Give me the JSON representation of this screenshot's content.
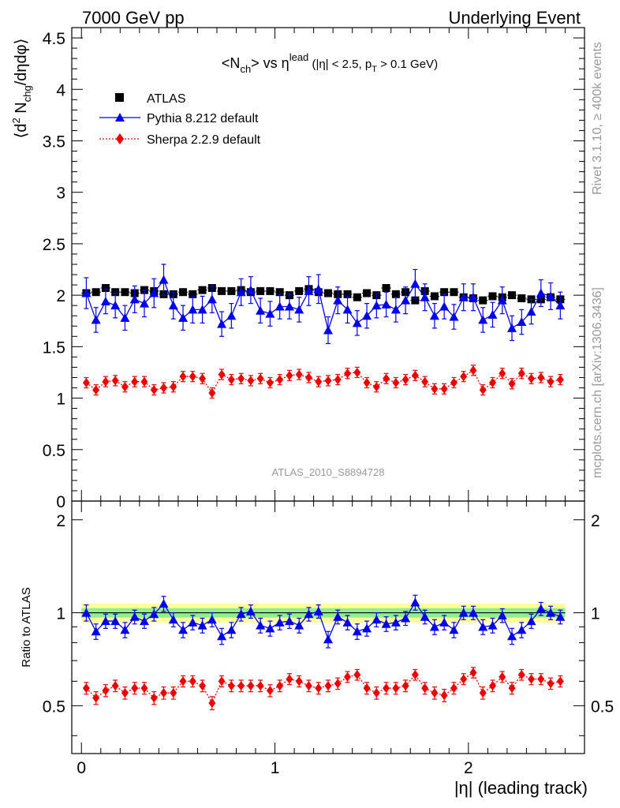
{
  "header": {
    "left": "7000 GeV pp",
    "right": "Underlying Event"
  },
  "side_labels": {
    "rivet": "Rivet 3.1.10, ≥ 400k events",
    "mcplots": "mcplots.cern.ch [arXiv:1306.3436]"
  },
  "analysis_id": "ATLAS_2010_S8894728",
  "chart_data": [
    {
      "panel": "main",
      "type": "scatter",
      "title": "<N_ch> vs η^lead (|η| < 2.5, p_T > 0.1 GeV)",
      "title_parts": {
        "main": "<N",
        "sub1": "ch",
        "mid": "> vs η",
        "sup": "lead",
        "cond": " (|η| < 2.5, p",
        "sub2": "T",
        "end": " > 0.1 GeV)"
      },
      "ylabel": "⟨d² N_chg/dηdφ⟩",
      "ylabel_parts": {
        "pre": "⟨d",
        "sup": "2",
        "mid": " N",
        "sub": "chg",
        "post": "/dηdφ⟩"
      },
      "xlabel": "|η| (leading track)",
      "xlim": [
        -0.05,
        2.6
      ],
      "ylim": [
        0,
        4.6
      ],
      "yticks": [
        0,
        0.5,
        1,
        1.5,
        2,
        2.5,
        3,
        3.5,
        4,
        4.5
      ],
      "ytick_labels": [
        "0",
        "0.5",
        "1",
        "1.5",
        "2",
        "2.5",
        "3",
        "3.5",
        "4",
        "4.5"
      ],
      "legend_placement": "top-left",
      "legend": [
        "ATLAS",
        "Pythia 8.212 default",
        "Sherpa 2.2.9 default"
      ],
      "x": [
        0.025,
        0.075,
        0.125,
        0.175,
        0.225,
        0.275,
        0.325,
        0.375,
        0.425,
        0.475,
        0.525,
        0.575,
        0.625,
        0.675,
        0.725,
        0.775,
        0.825,
        0.875,
        0.925,
        0.975,
        1.025,
        1.075,
        1.125,
        1.175,
        1.225,
        1.275,
        1.325,
        1.375,
        1.425,
        1.475,
        1.525,
        1.575,
        1.625,
        1.675,
        1.725,
        1.775,
        1.825,
        1.875,
        1.925,
        1.975,
        2.025,
        2.075,
        2.125,
        2.175,
        2.225,
        2.275,
        2.325,
        2.375,
        2.425,
        2.475
      ],
      "series": [
        {
          "name": "ATLAS",
          "marker": "square",
          "color": "#000000",
          "values": [
            2.02,
            2.03,
            2.07,
            2.03,
            2.03,
            2.02,
            2.05,
            2.04,
            2.01,
            2.01,
            2.03,
            2.01,
            2.05,
            2.07,
            2.04,
            2.04,
            2.05,
            2.03,
            2.04,
            2.04,
            2.03,
            2.0,
            2.04,
            2.06,
            2.03,
            2.02,
            2.01,
            2.01,
            1.98,
            2.02,
            2.0,
            2.07,
            2.01,
            2.03,
            1.95,
            2.04,
            1.99,
            2.03,
            2.03,
            1.98,
            1.97,
            1.95,
            1.99,
            1.98,
            2.0,
            1.97,
            1.96,
            1.96,
            1.98,
            1.96
          ],
          "errors": [
            0.02,
            0.02,
            0.02,
            0.02,
            0.02,
            0.02,
            0.02,
            0.02,
            0.02,
            0.02,
            0.02,
            0.02,
            0.02,
            0.02,
            0.02,
            0.02,
            0.02,
            0.02,
            0.02,
            0.02,
            0.02,
            0.02,
            0.02,
            0.02,
            0.02,
            0.02,
            0.02,
            0.02,
            0.02,
            0.02,
            0.02,
            0.02,
            0.02,
            0.02,
            0.02,
            0.02,
            0.02,
            0.02,
            0.02,
            0.02,
            0.02,
            0.02,
            0.02,
            0.02,
            0.02,
            0.02,
            0.02,
            0.02,
            0.02,
            0.02
          ]
        },
        {
          "name": "Pythia 8.212 default",
          "marker": "triangle",
          "line": "solid",
          "color": "#0000ee",
          "values": [
            2.02,
            1.76,
            1.94,
            1.9,
            1.78,
            1.96,
            1.92,
            2.02,
            2.15,
            1.9,
            1.78,
            1.86,
            1.86,
            1.96,
            1.72,
            1.8,
            2.03,
            2.05,
            1.85,
            1.82,
            1.89,
            1.89,
            1.86,
            2.04,
            2.06,
            1.66,
            1.95,
            1.86,
            1.73,
            1.8,
            1.9,
            1.91,
            1.86,
            1.95,
            2.11,
            1.98,
            1.8,
            1.89,
            1.79,
            1.98,
            1.98,
            1.76,
            1.81,
            1.95,
            1.68,
            1.74,
            1.84,
            2.02,
            1.99,
            1.9
          ],
          "errors": [
            0.15,
            0.12,
            0.12,
            0.12,
            0.12,
            0.13,
            0.13,
            0.14,
            0.15,
            0.13,
            0.12,
            0.13,
            0.13,
            0.13,
            0.12,
            0.12,
            0.13,
            0.13,
            0.12,
            0.12,
            0.12,
            0.12,
            0.12,
            0.14,
            0.14,
            0.13,
            0.13,
            0.13,
            0.12,
            0.12,
            0.12,
            0.12,
            0.12,
            0.13,
            0.14,
            0.13,
            0.12,
            0.12,
            0.12,
            0.13,
            0.13,
            0.12,
            0.12,
            0.13,
            0.12,
            0.12,
            0.12,
            0.13,
            0.13,
            0.13
          ]
        },
        {
          "name": "Sherpa 2.2.9 default",
          "marker": "diamond",
          "line": "dotted",
          "color": "#ee0000",
          "values": [
            1.15,
            1.08,
            1.16,
            1.17,
            1.11,
            1.16,
            1.16,
            1.08,
            1.1,
            1.11,
            1.21,
            1.21,
            1.19,
            1.05,
            1.23,
            1.18,
            1.19,
            1.17,
            1.19,
            1.15,
            1.18,
            1.22,
            1.23,
            1.2,
            1.16,
            1.17,
            1.18,
            1.24,
            1.25,
            1.15,
            1.11,
            1.19,
            1.15,
            1.18,
            1.22,
            1.16,
            1.09,
            1.09,
            1.15,
            1.21,
            1.27,
            1.08,
            1.15,
            1.24,
            1.14,
            1.24,
            1.19,
            1.2,
            1.16,
            1.18
          ],
          "errors": [
            0.05,
            0.05,
            0.05,
            0.05,
            0.05,
            0.05,
            0.05,
            0.05,
            0.05,
            0.05,
            0.05,
            0.05,
            0.05,
            0.05,
            0.05,
            0.05,
            0.05,
            0.05,
            0.05,
            0.05,
            0.05,
            0.05,
            0.05,
            0.05,
            0.05,
            0.05,
            0.05,
            0.05,
            0.05,
            0.05,
            0.05,
            0.05,
            0.05,
            0.05,
            0.05,
            0.05,
            0.05,
            0.05,
            0.05,
            0.05,
            0.05,
            0.05,
            0.05,
            0.05,
            0.05,
            0.05,
            0.05,
            0.05,
            0.05,
            0.05
          ]
        }
      ]
    },
    {
      "panel": "ratio",
      "type": "scatter",
      "ylabel": "Ratio to ATLAS",
      "xlabel": "|η| (leading track)",
      "xlim": [
        -0.05,
        2.6
      ],
      "ylim": [
        0.35,
        2.3
      ],
      "yticks": [
        0.5,
        1,
        2
      ],
      "ytick_labels": [
        "0.5",
        "1",
        "2"
      ],
      "xticks": [
        0,
        1,
        2
      ],
      "xtick_labels": [
        "0",
        "1",
        "2"
      ],
      "bands": {
        "inner_color": "#90ee90",
        "outer_color": "#ffff99",
        "inner_halfwidth": 0.035,
        "outer_halfwidth": 0.07
      },
      "reference_line": 1,
      "series": [
        {
          "name": "Pythia 8.212 default",
          "color": "#0000ee",
          "values": [
            1.0,
            0.87,
            0.94,
            0.94,
            0.88,
            0.97,
            0.94,
            0.99,
            1.07,
            0.95,
            0.88,
            0.93,
            0.91,
            0.95,
            0.84,
            0.88,
            0.99,
            1.01,
            0.91,
            0.89,
            0.93,
            0.94,
            0.91,
            0.99,
            1.01,
            0.82,
            0.97,
            0.93,
            0.87,
            0.89,
            0.95,
            0.92,
            0.93,
            0.96,
            1.08,
            0.97,
            0.9,
            0.93,
            0.88,
            1.0,
            1.0,
            0.9,
            0.91,
            0.98,
            0.84,
            0.88,
            0.94,
            1.03,
            1.0,
            0.97
          ],
          "errors": [
            0.06,
            0.05,
            0.05,
            0.05,
            0.05,
            0.05,
            0.05,
            0.05,
            0.06,
            0.05,
            0.05,
            0.05,
            0.05,
            0.05,
            0.05,
            0.05,
            0.05,
            0.05,
            0.05,
            0.05,
            0.05,
            0.05,
            0.05,
            0.05,
            0.05,
            0.05,
            0.05,
            0.05,
            0.05,
            0.05,
            0.05,
            0.05,
            0.05,
            0.05,
            0.06,
            0.05,
            0.05,
            0.05,
            0.05,
            0.05,
            0.05,
            0.05,
            0.05,
            0.05,
            0.05,
            0.05,
            0.05,
            0.05,
            0.05,
            0.05
          ]
        },
        {
          "name": "Sherpa 2.2.9 default",
          "color": "#ee0000",
          "values": [
            0.57,
            0.53,
            0.56,
            0.58,
            0.55,
            0.57,
            0.57,
            0.53,
            0.55,
            0.55,
            0.6,
            0.6,
            0.58,
            0.51,
            0.6,
            0.58,
            0.58,
            0.58,
            0.58,
            0.56,
            0.58,
            0.61,
            0.6,
            0.58,
            0.57,
            0.58,
            0.59,
            0.62,
            0.63,
            0.57,
            0.55,
            0.57,
            0.57,
            0.58,
            0.63,
            0.57,
            0.55,
            0.54,
            0.57,
            0.61,
            0.64,
            0.55,
            0.58,
            0.62,
            0.57,
            0.63,
            0.61,
            0.61,
            0.59,
            0.6
          ],
          "errors": [
            0.025,
            0.025,
            0.025,
            0.025,
            0.025,
            0.025,
            0.025,
            0.025,
            0.025,
            0.025,
            0.025,
            0.025,
            0.025,
            0.025,
            0.025,
            0.025,
            0.025,
            0.025,
            0.025,
            0.025,
            0.025,
            0.025,
            0.025,
            0.025,
            0.025,
            0.025,
            0.025,
            0.025,
            0.025,
            0.025,
            0.025,
            0.025,
            0.025,
            0.025,
            0.025,
            0.025,
            0.025,
            0.025,
            0.025,
            0.025,
            0.025,
            0.025,
            0.025,
            0.025,
            0.025,
            0.025,
            0.025,
            0.025,
            0.025,
            0.025
          ]
        }
      ]
    }
  ]
}
